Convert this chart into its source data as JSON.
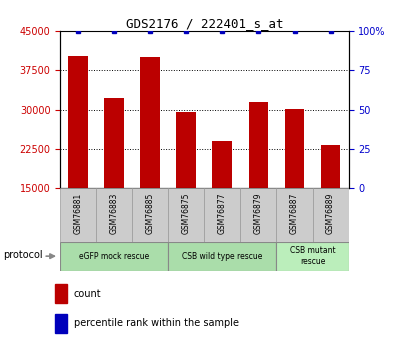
{
  "title": "GDS2176 / 222401_s_at",
  "samples": [
    "GSM76881",
    "GSM76883",
    "GSM76885",
    "GSM76875",
    "GSM76877",
    "GSM76879",
    "GSM76887",
    "GSM76889"
  ],
  "counts": [
    40200,
    32200,
    40000,
    29500,
    24000,
    31500,
    30100,
    23200
  ],
  "percentile_ranks": [
    100,
    100,
    100,
    100,
    100,
    100,
    100,
    100
  ],
  "ylim_left": [
    15000,
    45000
  ],
  "ylim_right": [
    0,
    100
  ],
  "yticks_left": [
    15000,
    22500,
    30000,
    37500,
    45000
  ],
  "yticks_right": [
    0,
    25,
    50,
    75,
    100
  ],
  "bar_color": "#bb0000",
  "dot_color": "#0000bb",
  "protocol_groups": [
    {
      "label": "eGFP mock rescue",
      "start": 0,
      "end": 3,
      "color": "#aaddaa"
    },
    {
      "label": "CSB wild type rescue",
      "start": 3,
      "end": 6,
      "color": "#aaddaa"
    },
    {
      "label": "CSB mutant\nrescue",
      "start": 6,
      "end": 8,
      "color": "#bbeebb"
    }
  ],
  "legend_count_color": "#bb0000",
  "legend_rank_color": "#0000bb",
  "left_tick_color": "#cc0000",
  "right_tick_color": "#0000cc",
  "grid_color": "black",
  "grid_style": "dotted",
  "bg_plot": "#ffffff",
  "bg_xtick": "#cccccc",
  "protocol_label": "protocol",
  "arrow_color": "#888888",
  "fig_width": 4.15,
  "fig_height": 3.45,
  "fig_dpi": 100
}
